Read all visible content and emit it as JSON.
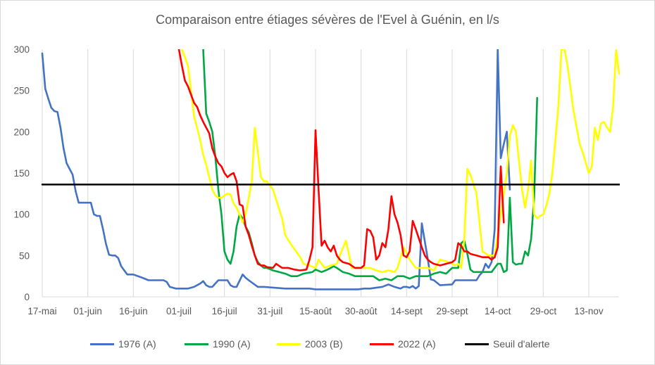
{
  "chart_data": {
    "type": "line",
    "title": "Comparaison entre étiages sévères de l'Evel à Guénin, en l/s",
    "xlabel": "",
    "ylabel": "",
    "x_range": [
      "2000-05-17",
      "2000-11-25"
    ],
    "ylim": [
      0,
      300
    ],
    "y_ticks": [
      0,
      50,
      100,
      150,
      200,
      250,
      300
    ],
    "x_ticks": [
      "2000-05-17",
      "2000-06-01",
      "2000-06-16",
      "2000-07-01",
      "2000-07-16",
      "2000-07-31",
      "2000-08-15",
      "2000-08-30",
      "2000-09-14",
      "2000-09-29",
      "2000-10-14",
      "2000-10-29",
      "2000-11-13"
    ],
    "x_tick_labels": [
      "17-mai",
      "01-juin",
      "16-juin",
      "01-juil",
      "16-juil",
      "31-juil",
      "15-août",
      "30-août",
      "14-sept",
      "29-sept",
      "14-oct",
      "29-oct",
      "13-nov"
    ],
    "grid": "vertical",
    "legend_position": "bottom",
    "series": [
      {
        "name": "1976 (A)",
        "color": "#4472c4",
        "x": [
          "2000-05-17",
          "2000-05-18",
          "2000-05-19",
          "2000-05-20",
          "2000-05-21",
          "2000-05-22",
          "2000-05-23",
          "2000-05-24",
          "2000-05-25",
          "2000-05-26",
          "2000-05-27",
          "2000-05-28",
          "2000-05-29",
          "2000-05-30",
          "2000-05-31",
          "2000-06-01",
          "2000-06-02",
          "2000-06-03",
          "2000-06-04",
          "2000-06-05",
          "2000-06-06",
          "2000-06-07",
          "2000-06-08",
          "2000-06-09",
          "2000-06-10",
          "2000-06-11",
          "2000-06-12",
          "2000-06-14",
          "2000-06-16",
          "2000-06-19",
          "2000-06-21",
          "2000-06-26",
          "2000-06-27",
          "2000-06-28",
          "2000-06-29",
          "2000-06-30",
          "2000-07-02",
          "2000-07-04",
          "2000-07-05",
          "2000-07-06",
          "2000-07-08",
          "2000-07-09",
          "2000-07-10",
          "2000-07-11",
          "2000-07-12",
          "2000-07-14",
          "2000-07-16",
          "2000-07-17",
          "2000-07-18",
          "2000-07-19",
          "2000-07-20",
          "2000-07-22",
          "2000-07-23",
          "2000-07-24",
          "2000-07-27",
          "2000-07-29",
          "2000-08-05",
          "2000-08-08",
          "2000-08-09",
          "2000-08-13",
          "2000-08-15",
          "2000-08-17",
          "2000-08-23",
          "2000-08-27",
          "2000-08-29",
          "2000-08-31",
          "2000-09-02",
          "2000-09-04",
          "2000-09-06",
          "2000-09-08",
          "2000-09-10",
          "2000-09-11",
          "2000-09-12",
          "2000-09-13",
          "2000-09-14",
          "2000-09-15",
          "2000-09-16",
          "2000-09-17",
          "2000-09-18",
          "2000-09-19",
          "2000-09-21",
          "2000-09-22",
          "2000-09-23",
          "2000-09-25",
          "2000-09-29",
          "2000-09-30",
          "2000-10-02",
          "2000-10-03",
          "2000-10-04",
          "2000-10-05",
          "2000-10-06",
          "2000-10-07",
          "2000-10-08",
          "2000-10-09",
          "2000-10-10",
          "2000-10-11",
          "2000-10-12",
          "2000-10-13",
          "2000-10-14",
          "2000-10-15",
          "2000-10-16",
          "2000-10-17",
          "2000-10-18"
        ],
        "values": [
          295,
          252,
          240,
          229,
          225,
          224,
          205,
          180,
          162,
          155,
          148,
          128,
          114,
          114,
          114,
          114,
          114,
          100,
          98,
          98,
          82,
          64,
          51,
          50,
          50,
          47,
          37,
          27,
          27,
          23,
          20,
          20,
          18,
          12,
          11,
          10,
          10,
          10,
          11,
          12,
          16,
          19,
          14,
          12,
          12,
          20,
          20,
          20,
          14,
          12,
          12,
          27,
          23,
          20,
          12,
          12,
          10,
          10,
          10,
          10,
          9,
          9,
          9,
          9,
          9,
          10,
          10,
          11,
          12,
          15,
          12,
          11,
          10,
          12,
          12,
          11,
          13,
          10,
          13,
          89,
          45,
          21,
          20,
          14,
          15,
          20,
          20,
          20,
          20,
          20,
          20,
          20,
          26,
          30,
          40,
          35,
          42,
          82,
          300,
          168,
          185,
          200,
          130
        ]
      },
      {
        "name": "1990 (A)",
        "color": "#00a844",
        "x": [
          "2000-07-09",
          "2000-07-10",
          "2000-07-11",
          "2000-07-12",
          "2000-07-13",
          "2000-07-14",
          "2000-07-15",
          "2000-07-16",
          "2000-07-17",
          "2000-07-18",
          "2000-07-19",
          "2000-07-20",
          "2000-07-21",
          "2000-07-22",
          "2000-07-23",
          "2000-07-24",
          "2000-07-25",
          "2000-07-26",
          "2000-07-27",
          "2000-07-28",
          "2000-07-29",
          "2000-07-30",
          "2000-08-01",
          "2000-08-03",
          "2000-08-05",
          "2000-08-07",
          "2000-08-09",
          "2000-08-11",
          "2000-08-14",
          "2000-08-15",
          "2000-08-17",
          "2000-08-19",
          "2000-08-21",
          "2000-08-22",
          "2000-08-24",
          "2000-08-26",
          "2000-08-28",
          "2000-08-30",
          "2000-09-01",
          "2000-09-03",
          "2000-09-05",
          "2000-09-07",
          "2000-09-09",
          "2000-09-11",
          "2000-09-13",
          "2000-09-15",
          "2000-09-17",
          "2000-09-19",
          "2000-09-21",
          "2000-09-23",
          "2000-09-25",
          "2000-09-27",
          "2000-09-29",
          "2000-10-01",
          "2000-10-02",
          "2000-10-03",
          "2000-10-04",
          "2000-10-05",
          "2000-10-06",
          "2000-10-08",
          "2000-10-10",
          "2000-10-12",
          "2000-10-14",
          "2000-10-15",
          "2000-10-16",
          "2000-10-17",
          "2000-10-18",
          "2000-10-19",
          "2000-10-20",
          "2000-10-21",
          "2000-10-22",
          "2000-10-23",
          "2000-10-24",
          "2000-10-25",
          "2000-10-26",
          "2000-10-27"
        ],
        "values": [
          300,
          222,
          212,
          200,
          170,
          130,
          100,
          55,
          45,
          40,
          55,
          85,
          100,
          95,
          85,
          78,
          65,
          50,
          42,
          38,
          35,
          35,
          32,
          30,
          28,
          25,
          25,
          28,
          30,
          33,
          30,
          33,
          37,
          35,
          30,
          28,
          25,
          25,
          25,
          25,
          20,
          22,
          20,
          25,
          25,
          22,
          25,
          25,
          25,
          28,
          30,
          28,
          35,
          35,
          65,
          68,
          52,
          33,
          30,
          30,
          30,
          30,
          40,
          40,
          30,
          32,
          120,
          42,
          39,
          40,
          40,
          55,
          50,
          70,
          120,
          241
        ]
      },
      {
        "name": "2003 (B)",
        "color": "#ffff00",
        "x": [
          "2000-07-02",
          "2000-07-04",
          "2000-07-05",
          "2000-07-06",
          "2000-07-07",
          "2000-07-08",
          "2000-07-09",
          "2000-07-10",
          "2000-07-11",
          "2000-07-12",
          "2000-07-13",
          "2000-07-14",
          "2000-07-15",
          "2000-07-16",
          "2000-07-17",
          "2000-07-18",
          "2000-07-19",
          "2000-07-20",
          "2000-07-21",
          "2000-07-22",
          "2000-07-23",
          "2000-07-25",
          "2000-07-26",
          "2000-07-27",
          "2000-07-28",
          "2000-07-29",
          "2000-07-30",
          "2000-08-01",
          "2000-08-02",
          "2000-08-04",
          "2000-08-05",
          "2000-08-07",
          "2000-08-08",
          "2000-08-10",
          "2000-08-11",
          "2000-08-13",
          "2000-08-15",
          "2000-08-16",
          "2000-08-18",
          "2000-08-20",
          "2000-08-22",
          "2000-08-23",
          "2000-08-25",
          "2000-08-27",
          "2000-08-29",
          "2000-08-31",
          "2000-09-02",
          "2000-09-04",
          "2000-09-06",
          "2000-09-08",
          "2000-09-10",
          "2000-09-11",
          "2000-09-13",
          "2000-09-15",
          "2000-09-17",
          "2000-09-19",
          "2000-09-21",
          "2000-09-23",
          "2000-09-25",
          "2000-09-27",
          "2000-09-29",
          "2000-09-30",
          "2000-10-01",
          "2000-10-02",
          "2000-10-03",
          "2000-10-04",
          "2000-10-05",
          "2000-10-07",
          "2000-10-09",
          "2000-10-11",
          "2000-10-13",
          "2000-10-15",
          "2000-10-17",
          "2000-10-18",
          "2000-10-19",
          "2000-10-20",
          "2000-10-21",
          "2000-10-22",
          "2000-10-23",
          "2000-10-24",
          "2000-10-25",
          "2000-10-26",
          "2000-10-27",
          "2000-10-28",
          "2000-10-29",
          "2000-10-30",
          "2000-10-31",
          "2000-11-01",
          "2000-11-02",
          "2000-11-03",
          "2000-11-04",
          "2000-11-05",
          "2000-11-06",
          "2000-11-08",
          "2000-11-10",
          "2000-11-11",
          "2000-11-13",
          "2000-11-14",
          "2000-11-15",
          "2000-11-16",
          "2000-11-17",
          "2000-11-18",
          "2000-11-19",
          "2000-11-20",
          "2000-11-21",
          "2000-11-22",
          "2000-11-23"
        ],
        "values": [
          300,
          280,
          250,
          218,
          205,
          190,
          172,
          160,
          145,
          130,
          123,
          120,
          120,
          123,
          125,
          124,
          113,
          108,
          100,
          90,
          100,
          140,
          205,
          175,
          145,
          140,
          140,
          130,
          118,
          95,
          75,
          63,
          58,
          48,
          40,
          38,
          35,
          45,
          35,
          38,
          40,
          50,
          68,
          35,
          35,
          35,
          35,
          32,
          30,
          32,
          30,
          35,
          60,
          45,
          35,
          35,
          35,
          32,
          45,
          43,
          40,
          38,
          40,
          35,
          70,
          155,
          148,
          125,
          55,
          50,
          50,
          100,
          150,
          195,
          208,
          200,
          165,
          130,
          108,
          130,
          165,
          100,
          95,
          98,
          100,
          110,
          125,
          150,
          190,
          232,
          300,
          300,
          280,
          225,
          185,
          175,
          150,
          158,
          205,
          190,
          210,
          212,
          205,
          200,
          230,
          300,
          270
        ]
      },
      {
        "name": "2022 (A)",
        "color": "#ff0000",
        "x": [
          "2000-07-01",
          "2000-07-02",
          "2000-07-03",
          "2000-07-04",
          "2000-07-05",
          "2000-07-06",
          "2000-07-07",
          "2000-07-08",
          "2000-07-09",
          "2000-07-10",
          "2000-07-11",
          "2000-07-12",
          "2000-07-13",
          "2000-07-14",
          "2000-07-15",
          "2000-07-16",
          "2000-07-17",
          "2000-07-18",
          "2000-07-19",
          "2000-07-20",
          "2000-07-21",
          "2000-07-22",
          "2000-07-23",
          "2000-07-24",
          "2000-07-25",
          "2000-07-26",
          "2000-07-27",
          "2000-07-28",
          "2000-07-29",
          "2000-07-30",
          "2000-08-01",
          "2000-08-02",
          "2000-08-04",
          "2000-08-06",
          "2000-08-08",
          "2000-08-10",
          "2000-08-12",
          "2000-08-13",
          "2000-08-14",
          "2000-08-15",
          "2000-08-16",
          "2000-08-17",
          "2000-08-18",
          "2000-08-19",
          "2000-08-20",
          "2000-08-21",
          "2000-08-22",
          "2000-08-23",
          "2000-08-24",
          "2000-08-26",
          "2000-08-28",
          "2000-08-29",
          "2000-08-30",
          "2000-08-31",
          "2000-09-01",
          "2000-09-02",
          "2000-09-03",
          "2000-09-04",
          "2000-09-05",
          "2000-09-06",
          "2000-09-07",
          "2000-09-08",
          "2000-09-09",
          "2000-09-10",
          "2000-09-11",
          "2000-09-12",
          "2000-09-13",
          "2000-09-14",
          "2000-09-15",
          "2000-09-16",
          "2000-09-17",
          "2000-09-19",
          "2000-09-20",
          "2000-09-21",
          "2000-09-22",
          "2000-09-23",
          "2000-09-25",
          "2000-09-27",
          "2000-09-29",
          "2000-09-30",
          "2000-10-01",
          "2000-10-02",
          "2000-10-03",
          "2000-10-04",
          "2000-10-05",
          "2000-10-07",
          "2000-10-09",
          "2000-10-11",
          "2000-10-12",
          "2000-10-13",
          "2000-10-14",
          "2000-10-15",
          "2000-10-16"
        ],
        "values": [
          300,
          280,
          262,
          255,
          245,
          235,
          230,
          220,
          212,
          205,
          198,
          180,
          170,
          162,
          158,
          150,
          145,
          148,
          150,
          140,
          112,
          110,
          85,
          75,
          62,
          50,
          40,
          38,
          38,
          36,
          35,
          40,
          35,
          35,
          33,
          32,
          33,
          45,
          60,
          202,
          130,
          62,
          68,
          60,
          55,
          62,
          50,
          45,
          42,
          40,
          35,
          35,
          35,
          38,
          82,
          80,
          72,
          45,
          50,
          65,
          60,
          82,
          122,
          100,
          90,
          75,
          50,
          48,
          55,
          92,
          82,
          60,
          50,
          45,
          42,
          40,
          38,
          40,
          42,
          45,
          65,
          62,
          55,
          55,
          52,
          50,
          48,
          48,
          45,
          48,
          60,
          158,
          90
        ]
      },
      {
        "name": "Seuil d'alerte",
        "color": "#000000",
        "x": [
          "2000-05-17",
          "2000-11-25"
        ],
        "values": [
          136,
          136
        ]
      }
    ]
  }
}
